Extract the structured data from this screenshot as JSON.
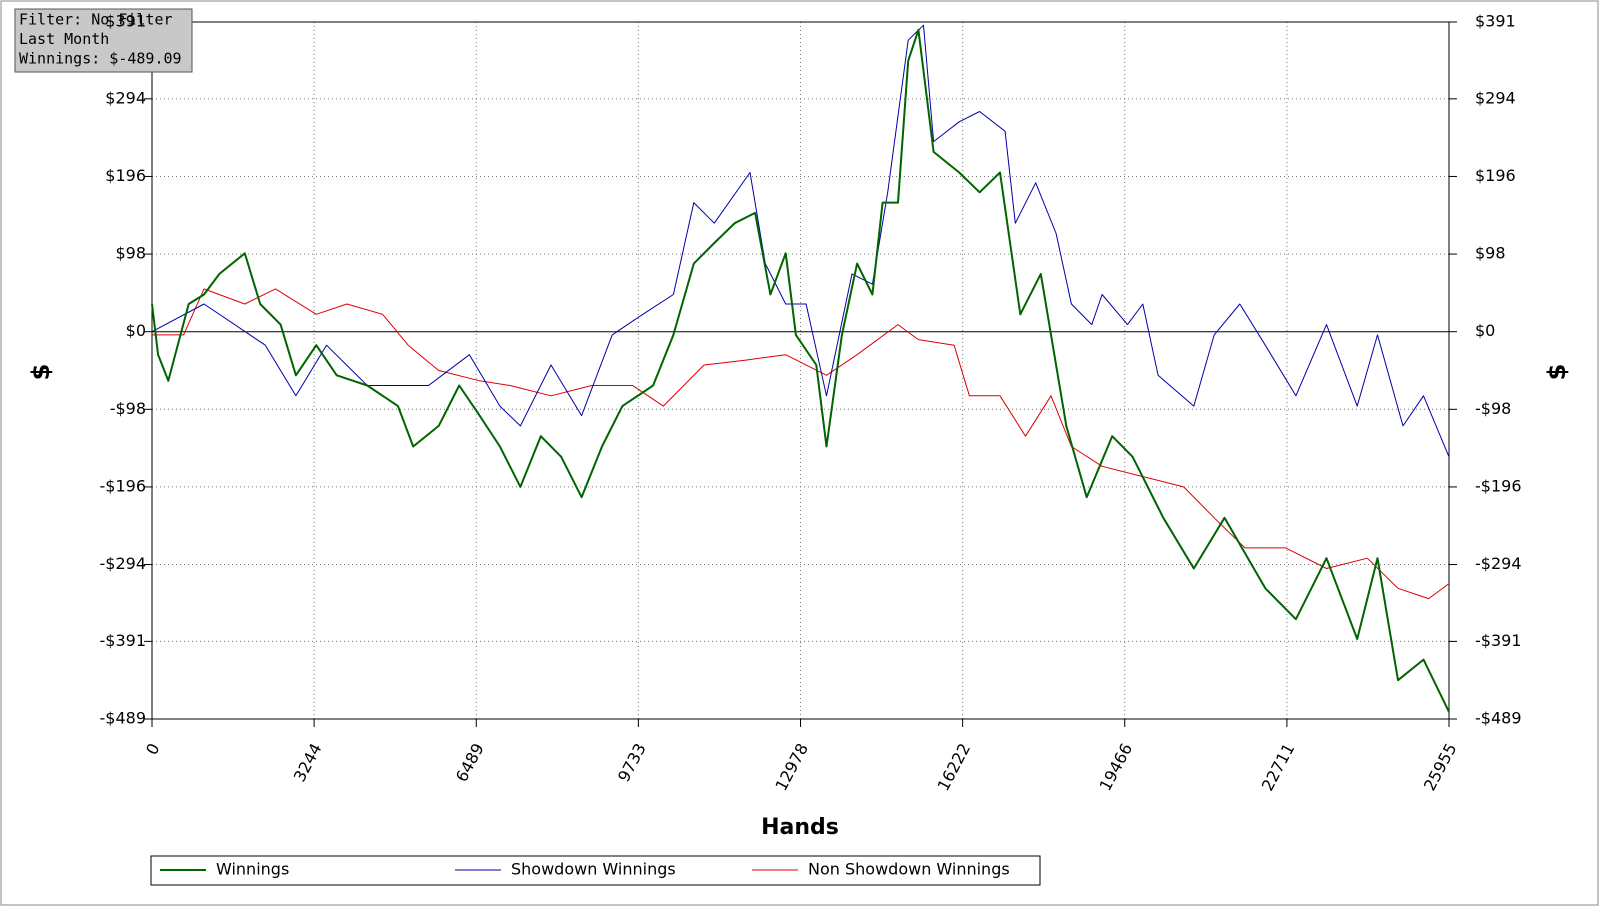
{
  "chart_data": {
    "type": "line",
    "info": [
      "Filter: No Filter",
      "Last Month",
      "Winnings: $-489.09"
    ],
    "xlabel": "Hands",
    "ylabel": "$",
    "y2label": "$",
    "xlim": [
      0,
      25955
    ],
    "xticks": [
      0,
      3244,
      6489,
      9733,
      12978,
      16222,
      19466,
      22711,
      25955
    ],
    "ylim": [
      -489,
      391
    ],
    "yticks": [
      {
        "value": 391,
        "label": "$391"
      },
      {
        "value": 294,
        "label": "$294"
      },
      {
        "value": 196,
        "label": "$196"
      },
      {
        "value": 98,
        "label": "$98"
      },
      {
        "value": 0,
        "label": "$0"
      },
      {
        "value": -98,
        "label": "-$98"
      },
      {
        "value": -196,
        "label": "-$196"
      },
      {
        "value": -294,
        "label": "-$294"
      },
      {
        "value": -391,
        "label": "-$391"
      },
      {
        "value": -489,
        "label": "-$489"
      }
    ],
    "y2lim": [
      -489,
      391
    ],
    "y2ticks": [
      {
        "value": 391,
        "label": "$391"
      },
      {
        "value": 294,
        "label": "$294"
      },
      {
        "value": 196,
        "label": "$196"
      },
      {
        "value": 98,
        "label": "$98"
      },
      {
        "value": 0,
        "label": "$0"
      },
      {
        "value": -98,
        "label": "-$98"
      },
      {
        "value": -196,
        "label": "-$196"
      },
      {
        "value": -294,
        "label": "-$294"
      },
      {
        "value": -391,
        "label": "-$391"
      },
      {
        "value": -489,
        "label": "-$489"
      }
    ],
    "grid": true,
    "legend": "bottom",
    "series": [
      {
        "name": "Winnings",
        "color": "#006400",
        "width": 2,
        "x": [
          0,
          123,
          327,
          735,
          1041,
          1348,
          1858,
          2165,
          2573,
          2879,
          3288,
          3696,
          4309,
          4922,
          5228,
          5738,
          6147,
          6555,
          6963,
          7372,
          7780,
          8189,
          8597,
          9006,
          9414,
          10027,
          10435,
          10843,
          11252,
          11660,
          12069,
          12375,
          12681,
          12886,
          13294,
          13498,
          13805,
          14111,
          14417,
          14621,
          14928,
          15132,
          15336,
          15642,
          16153,
          16561,
          16969,
          17377,
          17786,
          18297,
          18705,
          19216,
          19624,
          20237,
          20849,
          21462,
          22279,
          22891,
          23504,
          24117,
          24525,
          24934,
          25444,
          25955
        ],
        "values": [
          35,
          -29,
          -62,
          35,
          47,
          73,
          99,
          35,
          9,
          -55,
          -17,
          -55,
          -68,
          -94,
          -145,
          -119,
          -68,
          -106,
          -145,
          -196,
          -132,
          -158,
          -209,
          -145,
          -94,
          -68,
          -4,
          86,
          112,
          137,
          150,
          47,
          99,
          -4,
          -42,
          -145,
          -4,
          86,
          47,
          163,
          163,
          342,
          381,
          227,
          201,
          176,
          201,
          22,
          73,
          -119,
          -209,
          -132,
          -158,
          -235,
          -299,
          -235,
          -324,
          -363,
          -286,
          -388,
          -286,
          -440,
          -414,
          -480
        ]
      },
      {
        "name": "Showdown Winnings",
        "color": "#0000aa",
        "width": 1,
        "x": [
          0,
          1041,
          2267,
          2879,
          3492,
          4309,
          5534,
          6351,
          6963,
          7372,
          7984,
          8597,
          9210,
          9822,
          10435,
          10843,
          11252,
          11966,
          12273,
          12681,
          13090,
          13498,
          14009,
          14417,
          14723,
          15132,
          15438,
          15642,
          16153,
          16561,
          17071,
          17275,
          17684,
          18092,
          18399,
          18807,
          19012,
          19522,
          19828,
          20134,
          20849,
          21257,
          21768,
          22279,
          22891,
          23504,
          24117,
          24525,
          25035,
          25444,
          25955
        ],
        "values": [
          0,
          35,
          -17,
          -81,
          -17,
          -68,
          -68,
          -29,
          -94,
          -119,
          -42,
          -106,
          -4,
          22,
          47,
          163,
          137,
          201,
          86,
          35,
          35,
          -81,
          73,
          60,
          176,
          368,
          387,
          240,
          265,
          278,
          253,
          137,
          188,
          124,
          35,
          9,
          47,
          9,
          35,
          -55,
          -94,
          -4,
          35,
          -17,
          -81,
          9,
          -94,
          -4,
          -119,
          -81,
          -158
        ]
      },
      {
        "name": "Non Showdown Winnings",
        "color": "#dd0000",
        "width": 1,
        "x": [
          0,
          633,
          1041,
          1858,
          2471,
          3288,
          3900,
          4615,
          5126,
          5738,
          6555,
          7167,
          7984,
          8801,
          9618,
          10231,
          11048,
          11864,
          12681,
          13498,
          14111,
          14928,
          15336,
          16051,
          16357,
          16969,
          17480,
          17990,
          18399,
          19012,
          19828,
          20645,
          21257,
          21870,
          22687,
          23504,
          24321,
          24934,
          25546,
          25955
        ],
        "values": [
          -4,
          -4,
          54,
          35,
          54,
          22,
          35,
          22,
          -17,
          -49,
          -62,
          -68,
          -81,
          -68,
          -68,
          -94,
          -42,
          -36,
          -29,
          -55,
          -29,
          9,
          -10,
          -17,
          -81,
          -81,
          -132,
          -81,
          -145,
          -170,
          -183,
          -196,
          -235,
          -273,
          -273,
          -299,
          -286,
          -324,
          -337,
          -318
        ]
      }
    ]
  }
}
